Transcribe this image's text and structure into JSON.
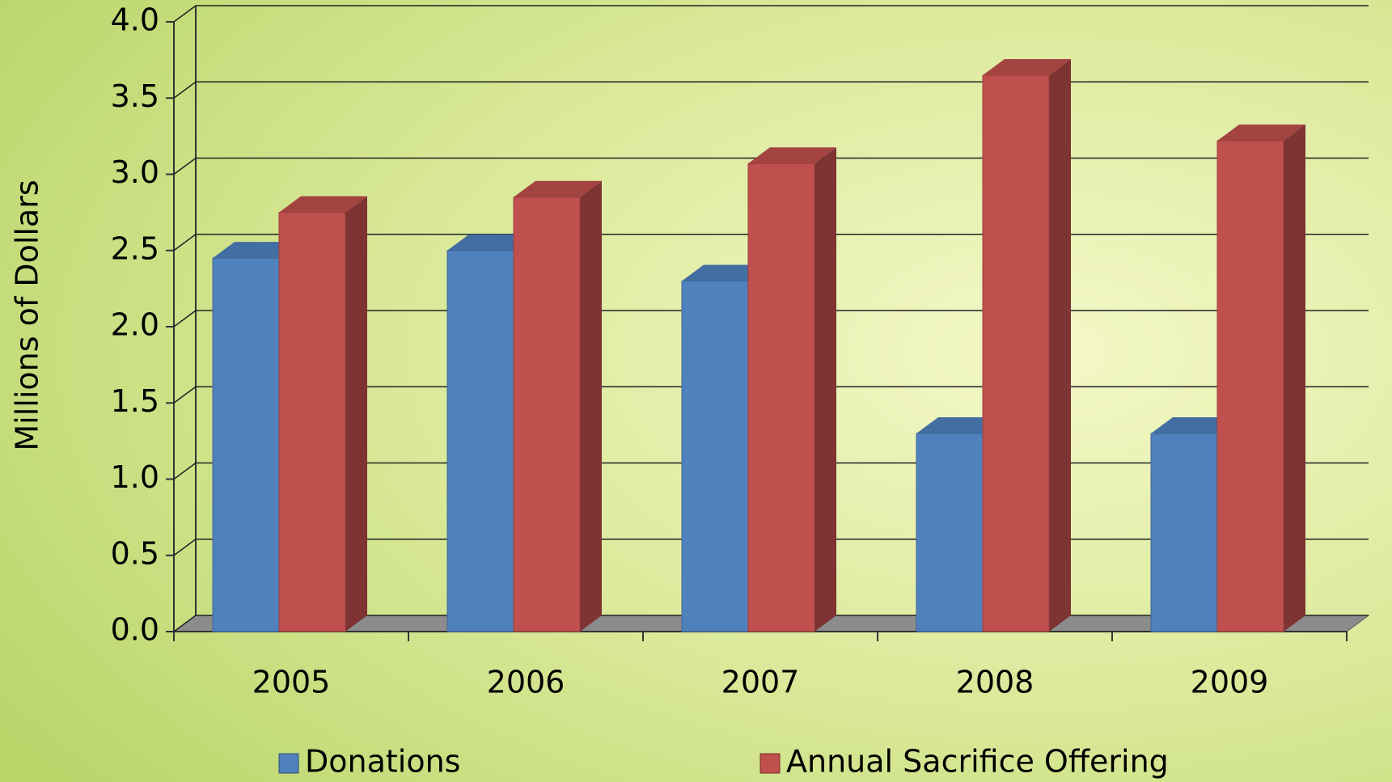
{
  "chart_data": {
    "type": "bar3d",
    "y_label": "Millions of Dollars",
    "categories": [
      "2005",
      "2006",
      "2007",
      "2008",
      "2009"
    ],
    "series": [
      {
        "name": "Donations",
        "color": "#4f81bd",
        "values": [
          2.45,
          2.5,
          2.3,
          1.3,
          1.3
        ]
      },
      {
        "name": "Annual Sacrifice Offering",
        "color": "#c0504d",
        "values": [
          2.75,
          2.85,
          3.07,
          3.65,
          3.22
        ]
      }
    ],
    "ylim": [
      0,
      4
    ],
    "yticks": [
      {
        "value": 0,
        "label": "0.0"
      },
      0.5,
      {
        "value": 1,
        "label": "1.0"
      },
      1.5,
      {
        "value": 2,
        "label": "2.0"
      },
      2.5,
      {
        "value": 3,
        "label": "3.0"
      },
      3.5,
      {
        "value": 4,
        "label": "4.0"
      }
    ],
    "grid": true,
    "legend": "bottom"
  }
}
